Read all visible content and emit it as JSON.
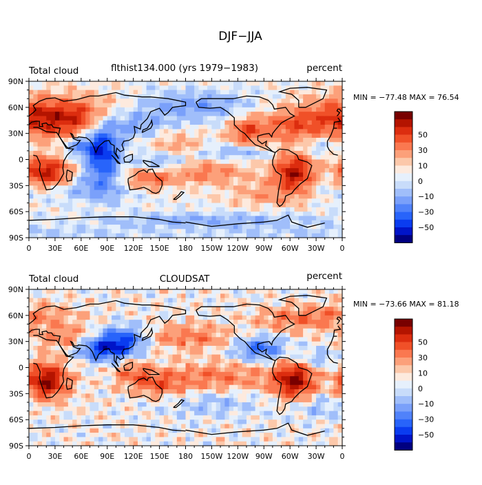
{
  "figure_title": "DJF−JJA",
  "colorbar": {
    "colors": [
      "#000080",
      "#0014c8",
      "#0a3cf0",
      "#2864fa",
      "#5082fa",
      "#7aa0fa",
      "#a0befa",
      "#c8dcfa",
      "#e6f0fc",
      "#fdeade",
      "#fcc8aa",
      "#fca07a",
      "#fa7850",
      "#f05028",
      "#dc2d0f",
      "#b41400",
      "#780000"
    ],
    "labels": [
      "50",
      "30",
      "10",
      "0",
      "−10",
      "−30",
      "−50"
    ]
  },
  "longitude_ticks": [
    "0",
    "30E",
    "60E",
    "90E",
    "120E",
    "150E",
    "180",
    "150W",
    "120W",
    "90W",
    "60W",
    "30W",
    "0"
  ],
  "latitude_ticks": [
    "90N",
    "60N",
    "30N",
    "0",
    "30S",
    "60S",
    "90S"
  ],
  "chart_data": [
    {
      "type": "heatmap",
      "left_label": "Total cloud",
      "center_label": "flthist134.000 (yrs 1979−1983)",
      "right_label": "percent",
      "stats_text": "MIN = −77.48 MAX =  76.54",
      "min": -77.48,
      "max": 76.54,
      "x_range": [
        0,
        360
      ],
      "y_range": [
        -90,
        90
      ],
      "units": "percent"
    },
    {
      "type": "heatmap",
      "left_label": "Total cloud",
      "center_label": "CLOUDSAT",
      "right_label": "percent",
      "stats_text": "MIN = −73.66 MAX =  81.18",
      "min": -73.66,
      "max": 81.18,
      "x_range": [
        0,
        360
      ],
      "y_range": [
        -90,
        90
      ],
      "units": "percent"
    }
  ]
}
